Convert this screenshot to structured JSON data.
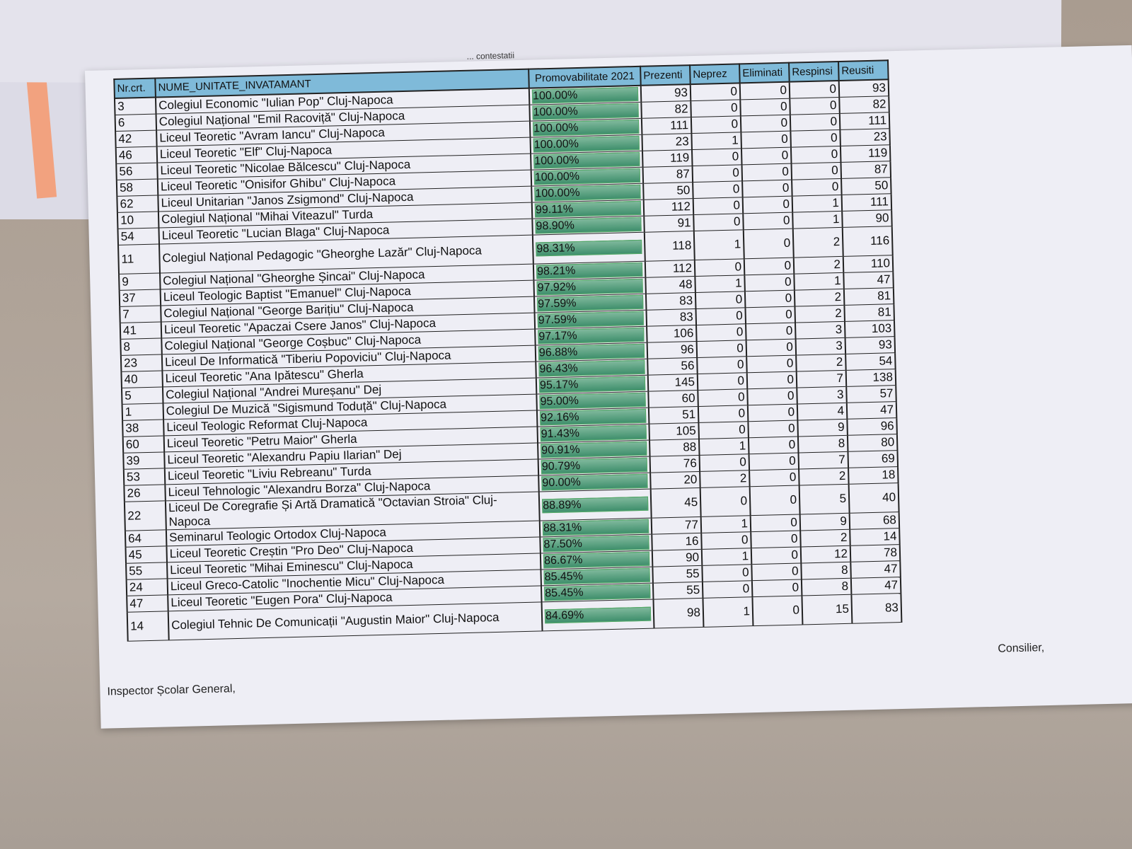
{
  "caption": "... contestatii",
  "headers": [
    "Nr.crt.",
    "NUME_UNITATE_INVATAMANT",
    "Promovabilitate 2021",
    "Prezenti",
    "Neprez",
    "Eliminati",
    "Respinsi",
    "Reusiti"
  ],
  "rows": [
    {
      "nr": "3",
      "name": "Colegiul Economic \"Iulian Pop\" Cluj-Napoca",
      "pct": "100.00%",
      "prezenti": "93",
      "neprez": "0",
      "eliminati": "0",
      "respinsi": "0",
      "reusiti": "93"
    },
    {
      "nr": "6",
      "name": "Colegiul Național \"Emil Racoviță\" Cluj-Napoca",
      "pct": "100.00%",
      "prezenti": "82",
      "neprez": "0",
      "eliminati": "0",
      "respinsi": "0",
      "reusiti": "82"
    },
    {
      "nr": "42",
      "name": "Liceul Teoretic \"Avram Iancu\" Cluj-Napoca",
      "pct": "100.00%",
      "prezenti": "111",
      "neprez": "0",
      "eliminati": "0",
      "respinsi": "0",
      "reusiti": "111"
    },
    {
      "nr": "46",
      "name": "Liceul Teoretic \"Elf\" Cluj-Napoca",
      "pct": "100.00%",
      "prezenti": "23",
      "neprez": "1",
      "eliminati": "0",
      "respinsi": "0",
      "reusiti": "23"
    },
    {
      "nr": "56",
      "name": "Liceul Teoretic \"Nicolae Bălcescu\" Cluj-Napoca",
      "pct": "100.00%",
      "prezenti": "119",
      "neprez": "0",
      "eliminati": "0",
      "respinsi": "0",
      "reusiti": "119"
    },
    {
      "nr": "58",
      "name": "Liceul Teoretic \"Onisifor Ghibu\" Cluj-Napoca",
      "pct": "100.00%",
      "prezenti": "87",
      "neprez": "0",
      "eliminati": "0",
      "respinsi": "0",
      "reusiti": "87"
    },
    {
      "nr": "62",
      "name": "Liceul Unitarian \"Janos Zsigmond\" Cluj-Napoca",
      "pct": "100.00%",
      "prezenti": "50",
      "neprez": "0",
      "eliminati": "0",
      "respinsi": "0",
      "reusiti": "50"
    },
    {
      "nr": "10",
      "name": "Colegiul Național \"Mihai Viteazul\" Turda",
      "pct": "99.11%",
      "prezenti": "112",
      "neprez": "0",
      "eliminati": "0",
      "respinsi": "1",
      "reusiti": "111"
    },
    {
      "nr": "54",
      "name": "Liceul Teoretic \"Lucian Blaga\" Cluj-Napoca",
      "pct": "98.90%",
      "prezenti": "91",
      "neprez": "0",
      "eliminati": "0",
      "respinsi": "1",
      "reusiti": "90"
    },
    {
      "nr": "11",
      "name": "Colegiul Național Pedagogic \"Gheorghe Lazăr\" Cluj-Napoca",
      "pct": "98.31%",
      "prezenti": "118",
      "neprez": "1",
      "eliminati": "0",
      "respinsi": "2",
      "reusiti": "116",
      "tall": true
    },
    {
      "nr": "9",
      "name": "Colegiul Național \"Gheorghe Șincai\" Cluj-Napoca",
      "pct": "98.21%",
      "prezenti": "112",
      "neprez": "0",
      "eliminati": "0",
      "respinsi": "2",
      "reusiti": "110"
    },
    {
      "nr": "37",
      "name": "Liceul Teologic Baptist \"Emanuel\" Cluj-Napoca",
      "pct": "97.92%",
      "prezenti": "48",
      "neprez": "1",
      "eliminati": "0",
      "respinsi": "1",
      "reusiti": "47"
    },
    {
      "nr": "7",
      "name": "Colegiul Național \"George Barițiu\" Cluj-Napoca",
      "pct": "97.59%",
      "prezenti": "83",
      "neprez": "0",
      "eliminati": "0",
      "respinsi": "2",
      "reusiti": "81"
    },
    {
      "nr": "41",
      "name": "Liceul Teoretic \"Apaczai Csere Janos\" Cluj-Napoca",
      "pct": "97.59%",
      "prezenti": "83",
      "neprez": "0",
      "eliminati": "0",
      "respinsi": "2",
      "reusiti": "81"
    },
    {
      "nr": "8",
      "name": "Colegiul Național \"George Coșbuc\" Cluj-Napoca",
      "pct": "97.17%",
      "prezenti": "106",
      "neprez": "0",
      "eliminati": "0",
      "respinsi": "3",
      "reusiti": "103"
    },
    {
      "nr": "23",
      "name": "Liceul De Informatică \"Tiberiu Popoviciu\" Cluj-Napoca",
      "pct": "96.88%",
      "prezenti": "96",
      "neprez": "0",
      "eliminati": "0",
      "respinsi": "3",
      "reusiti": "93"
    },
    {
      "nr": "40",
      "name": "Liceul Teoretic \"Ana Ipătescu\" Gherla",
      "pct": "96.43%",
      "prezenti": "56",
      "neprez": "0",
      "eliminati": "0",
      "respinsi": "2",
      "reusiti": "54"
    },
    {
      "nr": "5",
      "name": "Colegiul Național \"Andrei Mureșanu\" Dej",
      "pct": "95.17%",
      "prezenti": "145",
      "neprez": "0",
      "eliminati": "0",
      "respinsi": "7",
      "reusiti": "138"
    },
    {
      "nr": "1",
      "name": "Colegiul De Muzică \"Sigismund Toduță\" Cluj-Napoca",
      "pct": "95.00%",
      "prezenti": "60",
      "neprez": "0",
      "eliminati": "0",
      "respinsi": "3",
      "reusiti": "57"
    },
    {
      "nr": "38",
      "name": "Liceul Teologic Reformat Cluj-Napoca",
      "pct": "92.16%",
      "prezenti": "51",
      "neprez": "0",
      "eliminati": "0",
      "respinsi": "4",
      "reusiti": "47"
    },
    {
      "nr": "60",
      "name": "Liceul Teoretic \"Petru Maior\" Gherla",
      "pct": "91.43%",
      "prezenti": "105",
      "neprez": "0",
      "eliminati": "0",
      "respinsi": "9",
      "reusiti": "96"
    },
    {
      "nr": "39",
      "name": "Liceul Teoretic \"Alexandru Papiu Ilarian\" Dej",
      "pct": "90.91%",
      "prezenti": "88",
      "neprez": "1",
      "eliminati": "0",
      "respinsi": "8",
      "reusiti": "80"
    },
    {
      "nr": "53",
      "name": "Liceul Teoretic \"Liviu Rebreanu\" Turda",
      "pct": "90.79%",
      "prezenti": "76",
      "neprez": "0",
      "eliminati": "0",
      "respinsi": "7",
      "reusiti": "69"
    },
    {
      "nr": "26",
      "name": "Liceul Tehnologic \"Alexandru Borza\" Cluj-Napoca",
      "pct": "90.00%",
      "prezenti": "20",
      "neprez": "2",
      "eliminati": "0",
      "respinsi": "2",
      "reusiti": "18"
    },
    {
      "nr": "22",
      "name": "Liceul De Coregrafie Și Artă Dramatică \"Octavian Stroia\" Cluj-Napoca",
      "pct": "88.89%",
      "prezenti": "45",
      "neprez": "0",
      "eliminati": "0",
      "respinsi": "5",
      "reusiti": "40",
      "tall": true
    },
    {
      "nr": "64",
      "name": "Seminarul Teologic Ortodox Cluj-Napoca",
      "pct": "88.31%",
      "prezenti": "77",
      "neprez": "1",
      "eliminati": "0",
      "respinsi": "9",
      "reusiti": "68"
    },
    {
      "nr": "45",
      "name": "Liceul Teoretic Creștin \"Pro Deo\" Cluj-Napoca",
      "pct": "87.50%",
      "prezenti": "16",
      "neprez": "0",
      "eliminati": "0",
      "respinsi": "2",
      "reusiti": "14"
    },
    {
      "nr": "55",
      "name": "Liceul Teoretic \"Mihai Eminescu\" Cluj-Napoca",
      "pct": "86.67%",
      "prezenti": "90",
      "neprez": "1",
      "eliminati": "0",
      "respinsi": "12",
      "reusiti": "78"
    },
    {
      "nr": "24",
      "name": "Liceul Greco-Catolic \"Inochentie Micu\" Cluj-Napoca",
      "pct": "85.45%",
      "prezenti": "55",
      "neprez": "0",
      "eliminati": "0",
      "respinsi": "8",
      "reusiti": "47"
    },
    {
      "nr": "47",
      "name": "Liceul Teoretic \"Eugen Pora\" Cluj-Napoca",
      "pct": "85.45%",
      "prezenti": "55",
      "neprez": "0",
      "eliminati": "0",
      "respinsi": "8",
      "reusiti": "47"
    },
    {
      "nr": "14",
      "name": "Colegiul Tehnic De Comunicații \"Augustin Maior\" Cluj-Napoca",
      "pct": "84.69%",
      "prezenti": "98",
      "neprez": "1",
      "eliminati": "0",
      "respinsi": "15",
      "reusiti": "83",
      "tall": true
    }
  ],
  "signatures": {
    "left": "Inspector Școlar General,",
    "right": "Consilier,"
  },
  "colors": {
    "header": "#7fbad9",
    "bar": "#3f8f6c",
    "highlighter": "#f2a27f"
  }
}
